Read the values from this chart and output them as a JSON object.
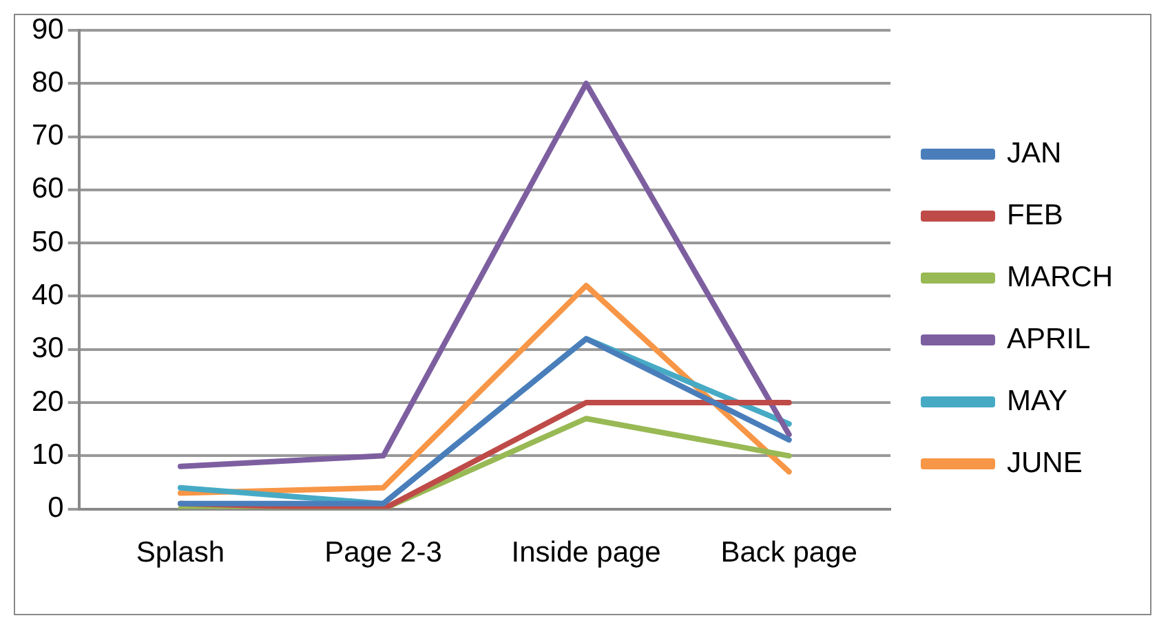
{
  "chart_data": {
    "type": "line",
    "categories": [
      "Splash",
      "Page 2-3",
      "Inside page",
      "Back page"
    ],
    "series": [
      {
        "name": "JAN",
        "color": "#4a7ebb",
        "values": [
          1,
          1,
          32,
          13
        ]
      },
      {
        "name": "FEB",
        "color": "#be4b48",
        "values": [
          1,
          0,
          20,
          20
        ]
      },
      {
        "name": "MARCH",
        "color": "#98b954",
        "values": [
          0,
          0,
          17,
          10
        ]
      },
      {
        "name": "APRIL",
        "color": "#7d5fa0",
        "values": [
          8,
          10,
          80,
          14
        ]
      },
      {
        "name": "MAY",
        "color": "#46aac5",
        "values": [
          4,
          1,
          32,
          16
        ]
      },
      {
        "name": "JUNE",
        "color": "#f79646",
        "values": [
          3,
          4,
          42,
          7
        ]
      }
    ],
    "ylim": [
      0,
      90
    ],
    "yticks": [
      0,
      10,
      20,
      30,
      40,
      50,
      60,
      70,
      80,
      90
    ],
    "grid": "y",
    "legend": "right",
    "marker": "none",
    "line_style": "solid"
  }
}
